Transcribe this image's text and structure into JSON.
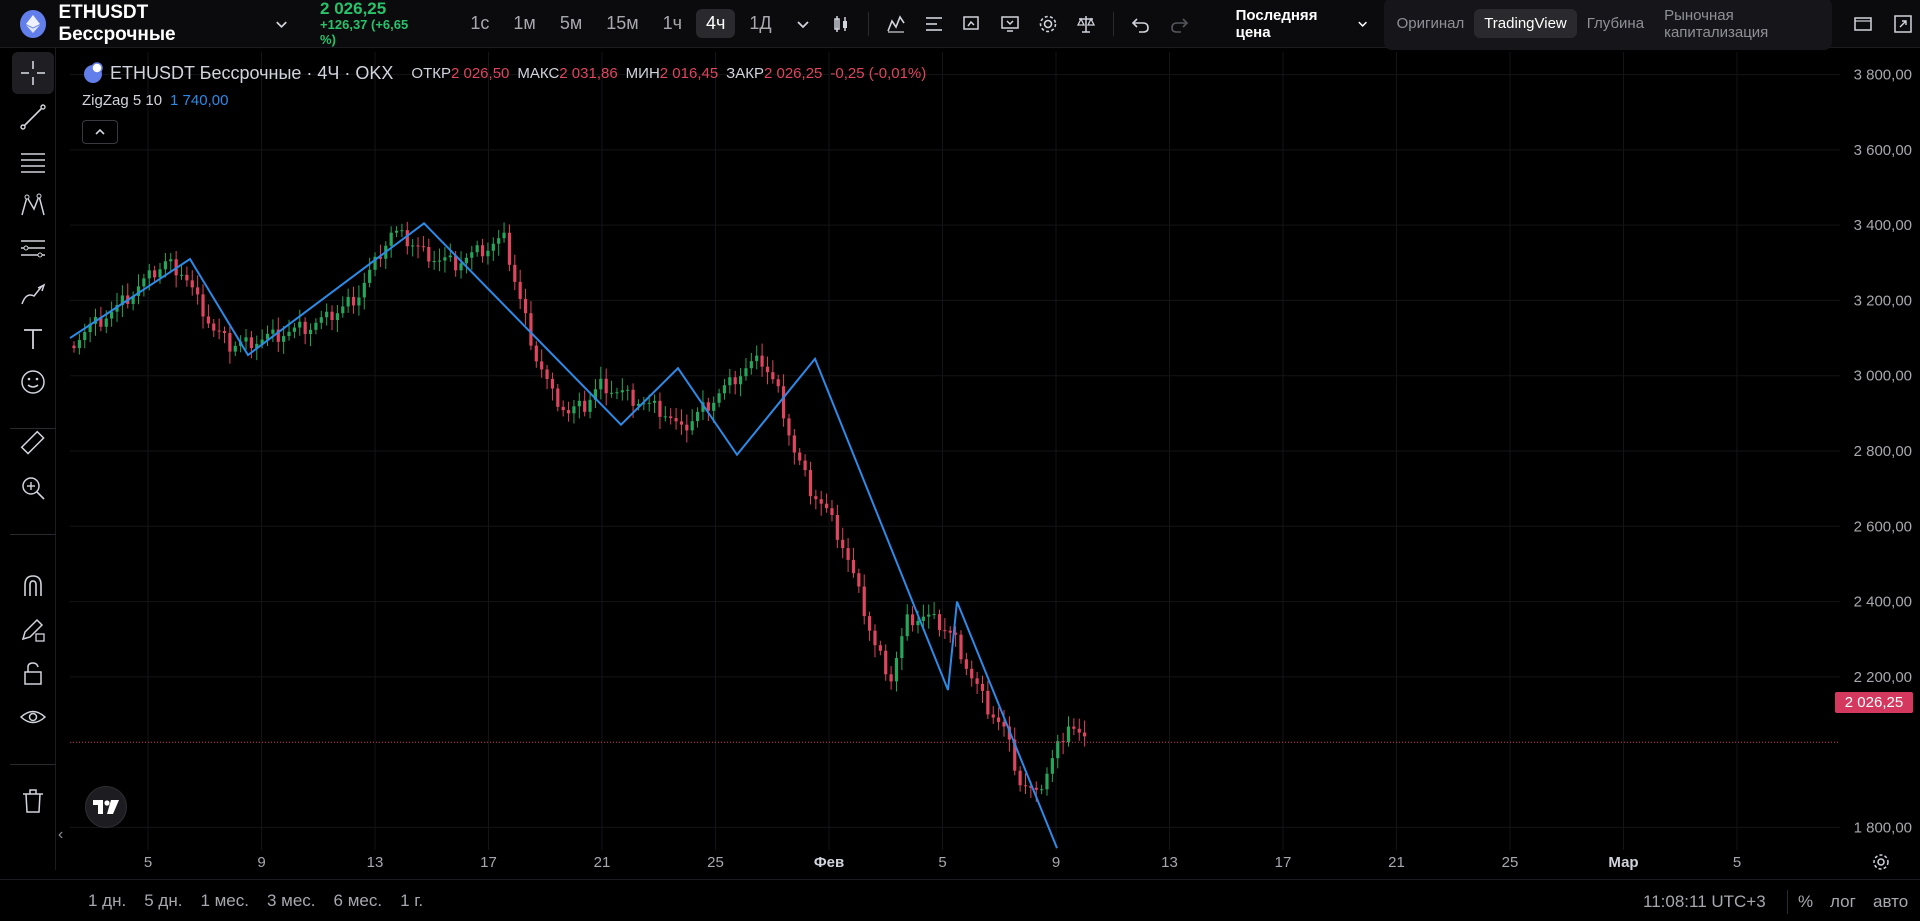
{
  "header": {
    "symbol": "ETHUSDT Бессрочные",
    "price": "2 026,25",
    "change": "+126,37 (+6,65 %)",
    "timeframes": [
      "1с",
      "1м",
      "5м",
      "15м",
      "1ч",
      "4ч",
      "1Д"
    ],
    "active_timeframe": "4ч",
    "price_type": "Последняя цена",
    "modes": [
      "Оригинал",
      "TradingView",
      "Глубина",
      "Рыночная капитализация"
    ],
    "active_mode": "TradingView"
  },
  "legend": {
    "title": "ETHUSDT Бессрочные · 4Ч · OKX",
    "open_label": "ОТКР",
    "open": "2 026,50",
    "high_label": "МАКС",
    "high": "2 031,86",
    "low_label": "МИН",
    "low": "2 016,45",
    "close_label": "ЗАКР",
    "close": "2 026,25",
    "change": "-0,25 (-0,01%)",
    "indicator": "ZigZag 5 10",
    "indicator_value": "1 740,00"
  },
  "price_axis": {
    "labels": [
      "3 800,00",
      "3 600,00",
      "3 400,00",
      "3 200,00",
      "3 000,00",
      "2 800,00",
      "2 600,00",
      "2 400,00",
      "2 200,00",
      "1 800,00"
    ],
    "current": "2 026,25"
  },
  "time_axis": {
    "labels": [
      "5",
      "9",
      "13",
      "17",
      "21",
      "25",
      "Фев",
      "5",
      "9",
      "13",
      "17",
      "21",
      "25",
      "Мар",
      "5"
    ]
  },
  "bottom": {
    "ranges": [
      "1 дн.",
      "5 дн.",
      "1 мес.",
      "3 мес.",
      "6 мес.",
      "1 г."
    ],
    "clock": "11:08:11 UTC+3",
    "percent": "%",
    "log": "лог",
    "auto": "авто"
  },
  "chart_data": {
    "type": "candlestick",
    "ylim": [
      1740,
      3860
    ],
    "zigzag": [
      3100,
      3310,
      3055,
      3405,
      2870,
      3020,
      2790,
      3045,
      2165,
      2400,
      1745
    ],
    "close_series": [
      3080,
      3120,
      3150,
      3180,
      3220,
      3260,
      3300,
      3280,
      3200,
      3120,
      3080,
      3090,
      3100,
      3110,
      3120,
      3130,
      3150,
      3180,
      3220,
      3300,
      3380,
      3360,
      3330,
      3310,
      3300,
      3320,
      3340,
      3360,
      3200,
      3050,
      2950,
      2900,
      2920,
      2980,
      2960,
      2940,
      2920,
      2900,
      2850,
      2900,
      2940,
      2980,
      3020,
      3040,
      2960,
      2800,
      2700,
      2640,
      2550,
      2420,
      2280,
      2200,
      2350,
      2360,
      2340,
      2300,
      2200,
      2120,
      2060,
      1920,
      1880,
      1980,
      2080,
      2026
    ],
    "current_price": 2026.25
  },
  "colors": {
    "up": "#26a65b",
    "down": "#e0455f",
    "zigzag": "#2c8ae8",
    "accent": "#d4385e"
  }
}
